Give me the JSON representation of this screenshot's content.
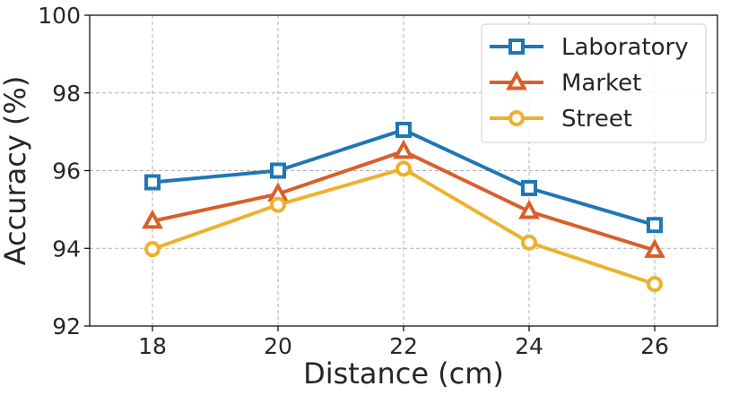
{
  "chart_data": {
    "type": "line",
    "xlabel": "Distance (cm)",
    "ylabel": "Accuracy (%)",
    "x": [
      18,
      20,
      22,
      24,
      26
    ],
    "x_ticks": [
      "18",
      "20",
      "22",
      "24",
      "26"
    ],
    "xlim": [
      17,
      27
    ],
    "ylim": [
      92,
      100
    ],
    "y_ticks": [
      "92",
      "94",
      "96",
      "98",
      "100"
    ],
    "grid": true,
    "legend_position": "top-right",
    "series": [
      {
        "name": "Laboratory",
        "marker": "square",
        "color": "#1f77b4",
        "values": [
          95.7,
          96.0,
          97.05,
          95.55,
          94.6
        ]
      },
      {
        "name": "Market",
        "marker": "triangle",
        "color": "#d95f2b",
        "values": [
          94.7,
          95.4,
          96.5,
          94.95,
          93.95
        ]
      },
      {
        "name": "Street",
        "marker": "circle",
        "color": "#edb12f",
        "values": [
          93.98,
          95.12,
          96.05,
          94.15,
          93.08
        ]
      }
    ]
  }
}
